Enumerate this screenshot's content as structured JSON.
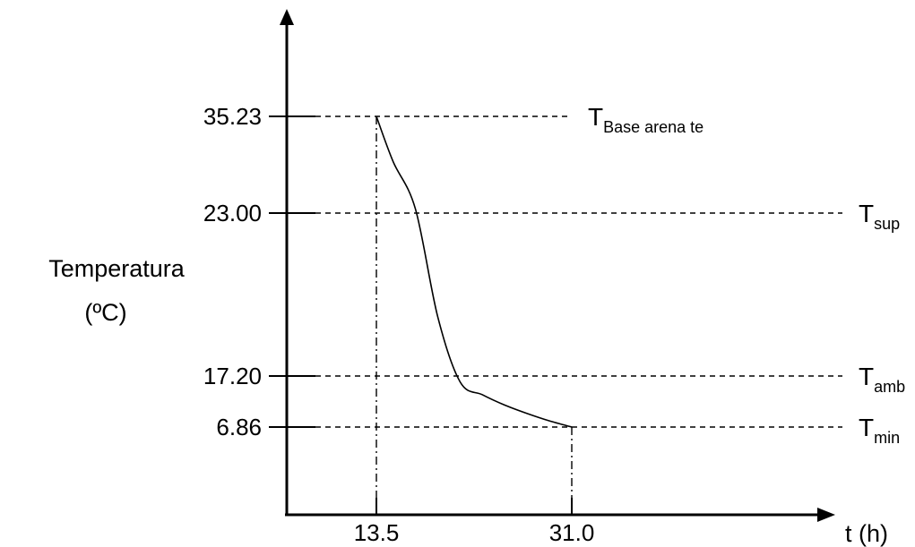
{
  "chart_data": {
    "type": "line",
    "ylabel_line1": "Temperatura",
    "ylabel_line2": "(ºC)",
    "xlabel": "t (h)",
    "x_ticks": [
      "13.5",
      "31.0"
    ],
    "y_ticks": [
      "35.23",
      "23.00",
      "17.20",
      "6.86"
    ],
    "reference_lines": [
      {
        "symbol": "T",
        "subscript": "Base arena te",
        "value": 35.23
      },
      {
        "symbol": "T",
        "subscript": "sup",
        "value": 23.0
      },
      {
        "symbol": "T",
        "subscript": "amb",
        "value": 17.2
      },
      {
        "symbol": "T",
        "subscript": "min",
        "value": 6.86
      }
    ],
    "series": [
      {
        "x": [
          13.5,
          15.0,
          17.0,
          19.0,
          21.0,
          23.0,
          25.0,
          27.0,
          29.0,
          31.0
        ],
        "values": [
          35.23,
          29.5,
          23.5,
          19.3,
          16.0,
          13.4,
          11.3,
          9.6,
          8.1,
          6.86
        ]
      }
    ],
    "grid": false
  }
}
